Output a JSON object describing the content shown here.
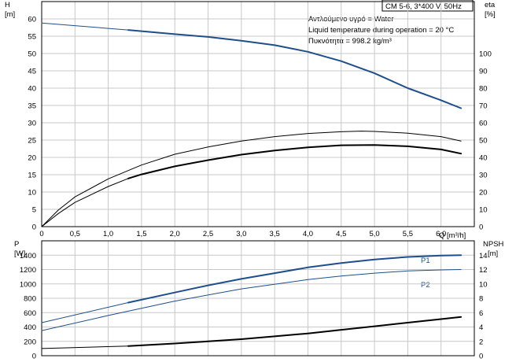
{
  "header": {
    "title": "CM 5-6, 3*400 V, 50Hz",
    "liquid_line": "Αντλούμενο υγρό = Water",
    "temp_line": "Liquid temperature during operation = 20 °C",
    "density_line": "Πυκνότητα = 998.2 kg/m³"
  },
  "colors": {
    "pump_blue": "#1f4e8c",
    "grid": "#c8c8c8",
    "black": "#000000"
  },
  "chart_data": [
    {
      "type": "line",
      "name": "head-efficiency",
      "y_left": {
        "label": "H",
        "unit": "[m]",
        "range": [
          0,
          65
        ],
        "ticks": [
          0,
          5,
          10,
          15,
          20,
          25,
          30,
          35,
          40,
          45,
          50,
          55,
          60
        ]
      },
      "y_right": {
        "label": "eta",
        "unit": "[%]",
        "range": [
          0,
          130
        ],
        "ticks": [
          0,
          10,
          20,
          30,
          40,
          50,
          60,
          70,
          80,
          90,
          100
        ]
      },
      "x": {
        "label": "Q [m³/h]",
        "range": [
          0,
          6.5
        ],
        "ticks": [
          "0",
          "0,5",
          "1,0",
          "1,5",
          "2,0",
          "2,5",
          "3,0",
          "3,5",
          "4,0",
          "4,5",
          "5,0",
          "5,5",
          "6,0"
        ]
      },
      "series": [
        {
          "axis": "left",
          "color": "#1f4e8c",
          "width": 1,
          "points": [
            [
              0,
              58.8
            ],
            [
              1.3,
              56.8
            ]
          ]
        },
        {
          "axis": "left",
          "color": "#1f4e8c",
          "width": 2,
          "points": [
            [
              1.3,
              56.8
            ],
            [
              2.0,
              55.6
            ],
            [
              2.5,
              54.8
            ],
            [
              3.0,
              53.7
            ],
            [
              3.5,
              52.4
            ],
            [
              4.0,
              50.5
            ],
            [
              4.5,
              47.8
            ],
            [
              5.0,
              44.3
            ],
            [
              5.5,
              40.0
            ],
            [
              6.0,
              36.5
            ],
            [
              6.3,
              34.2
            ]
          ]
        },
        {
          "axis": "left",
          "color": "#000000",
          "width": 1,
          "points": [
            [
              0,
              0
            ],
            [
              0.25,
              4.8
            ],
            [
              0.5,
              8.6
            ],
            [
              1.0,
              13.8
            ],
            [
              1.5,
              17.8
            ],
            [
              2.0,
              20.9
            ],
            [
              2.5,
              23.0
            ],
            [
              3.0,
              24.7
            ],
            [
              3.5,
              26.0
            ],
            [
              4.0,
              26.9
            ],
            [
              4.5,
              27.4
            ],
            [
              4.8,
              27.6
            ],
            [
              5.0,
              27.5
            ],
            [
              5.5,
              27.0
            ],
            [
              6.0,
              26.0
            ],
            [
              6.3,
              24.7
            ]
          ]
        },
        {
          "axis": "left",
          "color": "#000000",
          "width": 1,
          "points": [
            [
              0,
              0
            ],
            [
              0.25,
              3.8
            ],
            [
              0.5,
              7.0
            ],
            [
              1.0,
              11.6
            ],
            [
              1.3,
              13.9
            ]
          ]
        },
        {
          "axis": "left",
          "color": "#000000",
          "width": 2,
          "points": [
            [
              1.3,
              13.9
            ],
            [
              1.5,
              15.1
            ],
            [
              2.0,
              17.4
            ],
            [
              2.5,
              19.2
            ],
            [
              3.0,
              20.8
            ],
            [
              3.5,
              22.0
            ],
            [
              4.0,
              22.9
            ],
            [
              4.5,
              23.5
            ],
            [
              5.0,
              23.6
            ],
            [
              5.5,
              23.2
            ],
            [
              6.0,
              22.3
            ],
            [
              6.3,
              21.1
            ]
          ]
        }
      ]
    },
    {
      "type": "line",
      "name": "power-npsh",
      "y_left": {
        "label": "P",
        "unit": "[W]",
        "range": [
          0,
          1600
        ],
        "ticks": [
          0,
          200,
          400,
          600,
          800,
          1000,
          1200,
          1400
        ]
      },
      "y_right": {
        "label": "NPSH",
        "unit": "[m]",
        "range": [
          0,
          16
        ],
        "ticks": [
          0,
          2,
          4,
          6,
          8,
          10,
          12,
          14
        ]
      },
      "x": {
        "range": [
          0,
          6.5
        ]
      },
      "series": [
        {
          "axis": "left",
          "name": "P1",
          "color": "#1f4e8c",
          "width": 1,
          "points": [
            [
              0,
              460
            ],
            [
              1.3,
              740
            ]
          ]
        },
        {
          "axis": "left",
          "color": "#1f4e8c",
          "width": 2,
          "points": [
            [
              1.3,
              740
            ],
            [
              2.0,
              880
            ],
            [
              2.5,
              980
            ],
            [
              3.0,
              1070
            ],
            [
              3.5,
              1150
            ],
            [
              4.0,
              1230
            ],
            [
              4.5,
              1290
            ],
            [
              5.0,
              1340
            ],
            [
              5.5,
              1375
            ],
            [
              6.0,
              1395
            ],
            [
              6.3,
              1400
            ]
          ]
        },
        {
          "axis": "left",
          "name": "P2",
          "color": "#1f4e8c",
          "width": 1,
          "points": [
            [
              0,
              350
            ],
            [
              1.0,
              560
            ],
            [
              2.0,
              760
            ],
            [
              3.0,
              930
            ],
            [
              4.0,
              1060
            ],
            [
              4.5,
              1110
            ],
            [
              5.0,
              1150
            ],
            [
              5.5,
              1180
            ],
            [
              6.0,
              1195
            ],
            [
              6.3,
              1200
            ]
          ]
        },
        {
          "axis": "right",
          "color": "#000000",
          "width": 1,
          "points": [
            [
              0,
              1.0
            ],
            [
              1.3,
              1.35
            ]
          ]
        },
        {
          "axis": "right",
          "color": "#000000",
          "width": 2,
          "points": [
            [
              1.3,
              1.35
            ],
            [
              2.0,
              1.7
            ],
            [
              2.5,
              2.0
            ],
            [
              3.0,
              2.3
            ],
            [
              3.5,
              2.7
            ],
            [
              4.0,
              3.1
            ],
            [
              4.5,
              3.6
            ],
            [
              5.0,
              4.1
            ],
            [
              5.5,
              4.6
            ],
            [
              6.0,
              5.1
            ],
            [
              6.3,
              5.4
            ]
          ]
        }
      ]
    }
  ]
}
